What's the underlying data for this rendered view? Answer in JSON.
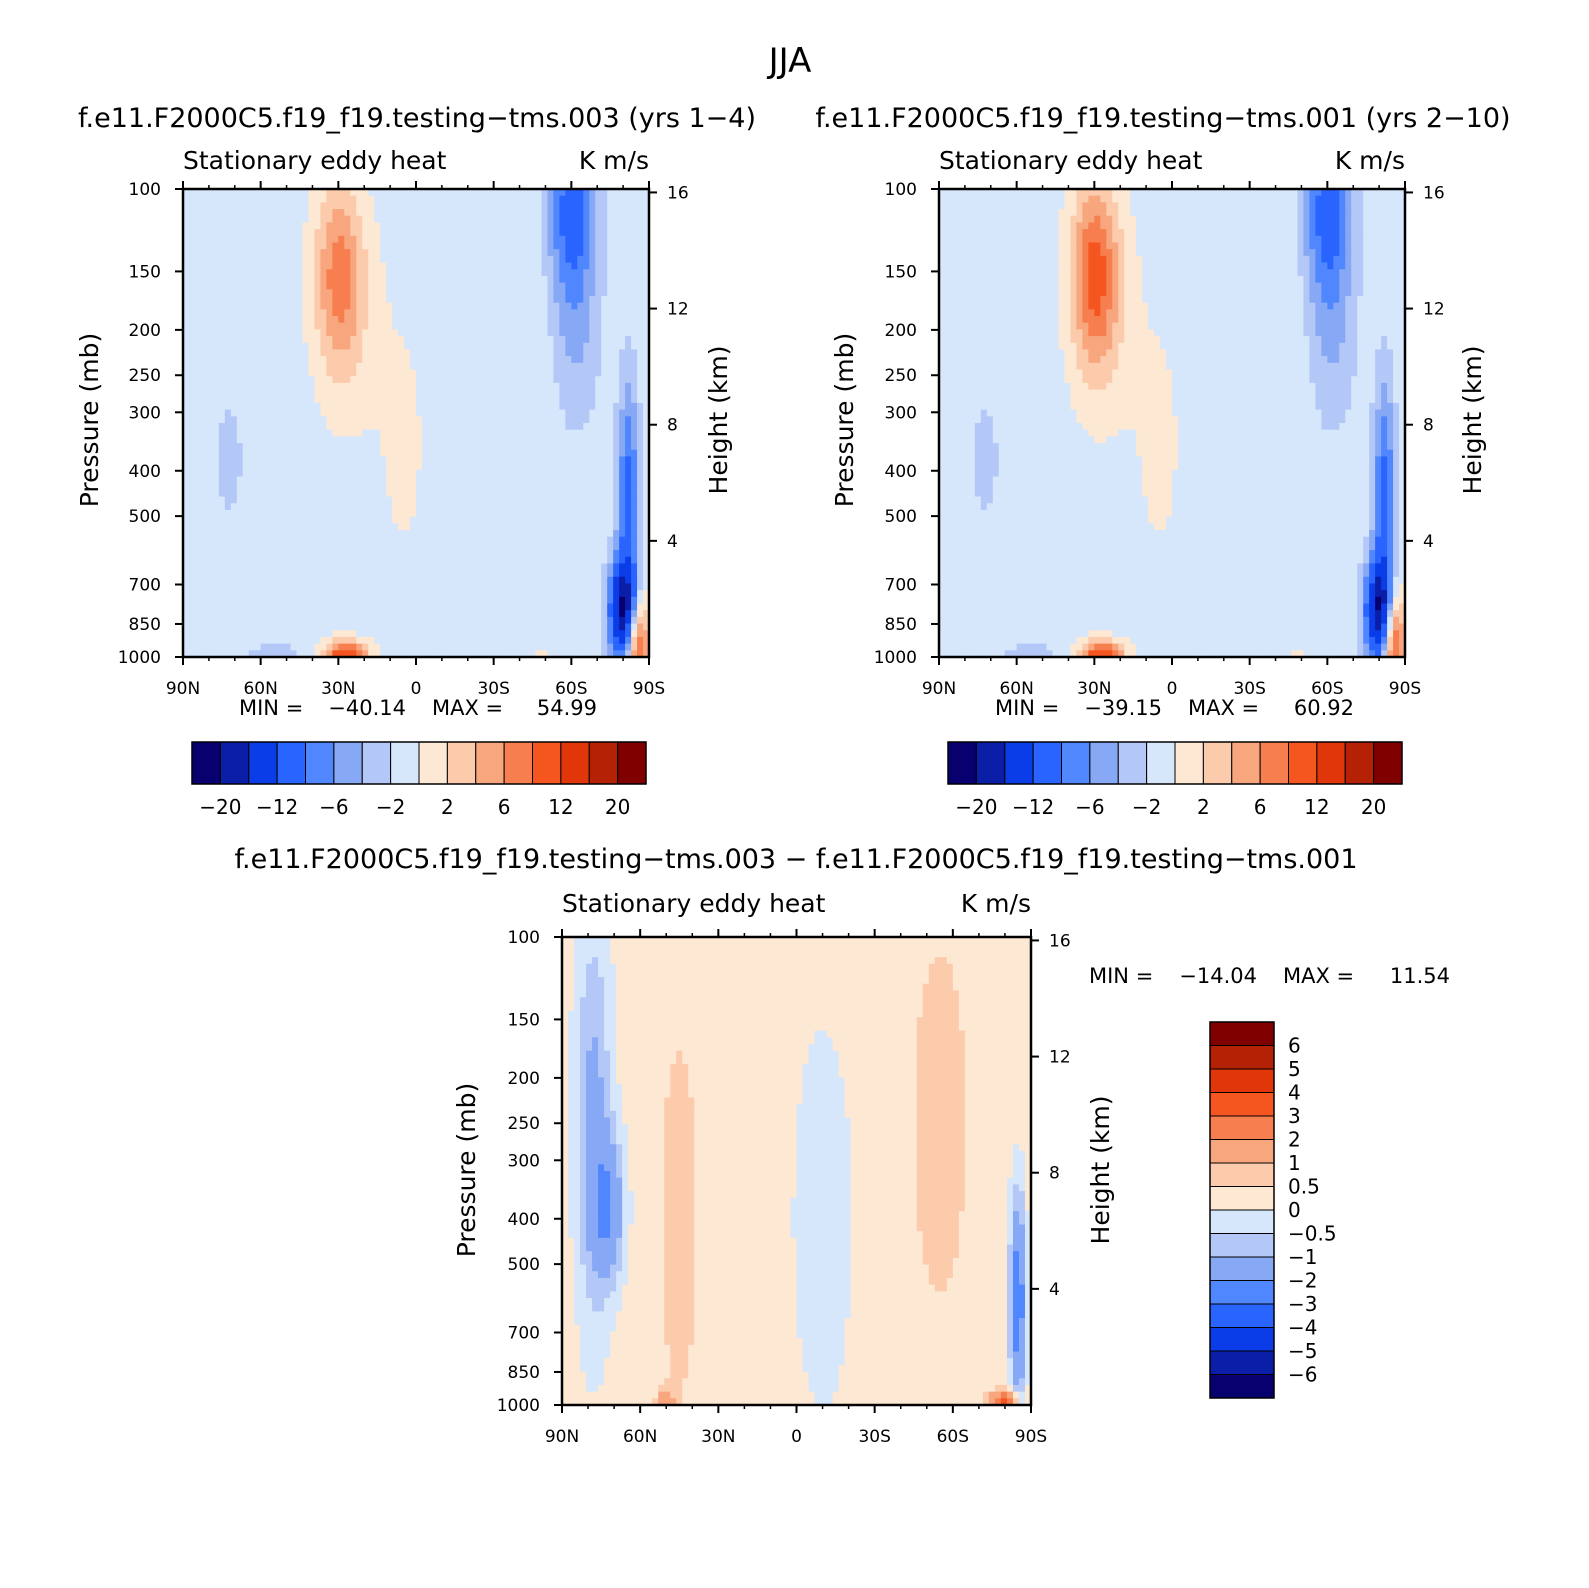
{
  "figure": {
    "title": "JJA"
  },
  "palette": {
    "levels20": [
      "#08006e",
      "#0a1ea8",
      "#0a3ce8",
      "#2a64ff",
      "#5087ff",
      "#87a8f5",
      "#b4c8f8",
      "#d6e6fb",
      "#fde8d4",
      "#fbcbac",
      "#f8a67e",
      "#f77e4e",
      "#f5551f",
      "#e03609",
      "#b52105",
      "#800000"
    ],
    "levels6": [
      "#800000",
      "#b52105",
      "#e03609",
      "#f5551f",
      "#f77e4e",
      "#f8a67e",
      "#fbcbac",
      "#fde8d4",
      "#d6e6fb",
      "#b4c8f8",
      "#87a8f5",
      "#5087ff",
      "#2a64ff",
      "#0a3ce8",
      "#0a1ea8",
      "#08006e"
    ]
  },
  "panels": [
    {
      "name": "test",
      "run_title": "f.e11.F2000C5.f19_f19.testing−tms.003 (yrs 1−4)",
      "sub_left": "Stationary eddy heat",
      "sub_right": "K m/s",
      "ylabel": "Pressure (mb)",
      "ylabel_right": "Height (km)",
      "min_label": "MIN =",
      "min_value": "−40.14",
      "max_label": "MAX =",
      "max_value": "54.99",
      "colorbar_labels": [
        "−20",
        "−12",
        "−6",
        "−2",
        "2",
        "6",
        "12",
        "20"
      ]
    },
    {
      "name": "control",
      "run_title": "f.e11.F2000C5.f19_f19.testing−tms.001 (yrs 2−10)",
      "sub_left": "Stationary eddy heat",
      "sub_right": "K m/s",
      "ylabel": "Pressure (mb)",
      "ylabel_right": "Height (km)",
      "min_label": "MIN =",
      "min_value": "−39.15",
      "max_label": "MAX =",
      "max_value": "60.92",
      "colorbar_labels": [
        "−20",
        "−12",
        "−6",
        "−2",
        "2",
        "6",
        "12",
        "20"
      ]
    },
    {
      "name": "difference",
      "run_title": "f.e11.F2000C5.f19_f19.testing−tms.003 − f.e11.F2000C5.f19_f19.testing−tms.001",
      "sub_left": "Stationary eddy heat",
      "sub_right": "K m/s",
      "ylabel": "Pressure (mb)",
      "ylabel_right": "Height (km)",
      "min_label": "MIN =",
      "min_value": "−14.04",
      "max_label": "MAX =",
      "max_value": "11.54",
      "colorbar_labels": [
        "6",
        "5",
        "4",
        "3",
        "2",
        "1",
        "0.5",
        "0",
        "−0.5",
        "−1",
        "−2",
        "−3",
        "−4",
        "−5",
        "−6"
      ]
    }
  ],
  "chart_data": [
    {
      "type": "heatmap",
      "title": "f.e11.F2000C5.f19_f19.testing−tms.003 (yrs 1−4)",
      "xlabel": "",
      "ylabel": "Pressure (mb)",
      "ylabel_right": "Height (km)",
      "x_ticks": [
        "90N",
        "60N",
        "30N",
        "0",
        "30S",
        "60S",
        "90S"
      ],
      "x_values": [
        90,
        60,
        30,
        0,
        -30,
        -60,
        -90
      ],
      "y_ticks": [
        100,
        150,
        200,
        250,
        300,
        400,
        500,
        700,
        850,
        1000
      ],
      "y_scale": "log",
      "y_right_ticks": [
        16,
        12,
        8,
        4
      ],
      "contour_levels": [
        -20,
        -16,
        -12,
        -8,
        -6,
        -4,
        -2,
        0,
        2,
        4,
        6,
        8,
        12,
        16,
        20
      ],
      "min": -40.14,
      "max": 54.99,
      "units": "K m/s",
      "features": [
        {
          "lat": 30,
          "p": 150,
          "value": 6
        },
        {
          "lat": -60,
          "p": 110,
          "value": -8
        },
        {
          "lat": -80,
          "p": 800,
          "value": -20
        },
        {
          "lat": 27,
          "p": 990,
          "value": 12
        },
        {
          "lat": -85,
          "p": 950,
          "value": 12
        }
      ]
    },
    {
      "type": "heatmap",
      "title": "f.e11.F2000C5.f19_f19.testing−tms.001 (yrs 2−10)",
      "xlabel": "",
      "ylabel": "Pressure (mb)",
      "ylabel_right": "Height (km)",
      "x_ticks": [
        "90N",
        "60N",
        "30N",
        "0",
        "30S",
        "60S",
        "90S"
      ],
      "x_values": [
        90,
        60,
        30,
        0,
        -30,
        -60,
        -90
      ],
      "y_ticks": [
        100,
        150,
        200,
        250,
        300,
        400,
        500,
        700,
        850,
        1000
      ],
      "y_scale": "log",
      "y_right_ticks": [
        16,
        12,
        8,
        4
      ],
      "contour_levels": [
        -20,
        -16,
        -12,
        -8,
        -6,
        -4,
        -2,
        0,
        2,
        4,
        6,
        8,
        12,
        16,
        20
      ],
      "min": -39.15,
      "max": 60.92,
      "units": "K m/s",
      "features": [
        {
          "lat": 30,
          "p": 150,
          "value": 8
        },
        {
          "lat": -60,
          "p": 110,
          "value": -8
        },
        {
          "lat": -80,
          "p": 800,
          "value": -20
        },
        {
          "lat": 27,
          "p": 990,
          "value": 12
        },
        {
          "lat": -85,
          "p": 920,
          "value": 12
        }
      ]
    },
    {
      "type": "heatmap",
      "title": "f.e11.F2000C5.f19_f19.testing−tms.003 − f.e11.F2000C5.f19_f19.testing−tms.001",
      "xlabel": "",
      "ylabel": "Pressure (mb)",
      "ylabel_right": "Height (km)",
      "x_ticks": [
        "90N",
        "60N",
        "30N",
        "0",
        "30S",
        "60S",
        "90S"
      ],
      "x_values": [
        90,
        60,
        30,
        0,
        -30,
        -60,
        -90
      ],
      "y_ticks": [
        100,
        150,
        200,
        250,
        300,
        400,
        500,
        700,
        850,
        1000
      ],
      "y_scale": "log",
      "y_right_ticks": [
        16,
        12,
        8,
        4
      ],
      "contour_levels": [
        -6,
        -5,
        -4,
        -3,
        -2,
        -1,
        -0.5,
        0,
        0.5,
        1,
        2,
        3,
        4,
        5,
        6
      ],
      "min": -14.04,
      "max": 11.54,
      "units": "K m/s",
      "features": [
        {
          "lat": 72,
          "p": 380,
          "value": -2
        },
        {
          "lat": -85,
          "p": 600,
          "value": -3
        },
        {
          "lat": -80,
          "p": 980,
          "value": 3
        }
      ]
    }
  ]
}
